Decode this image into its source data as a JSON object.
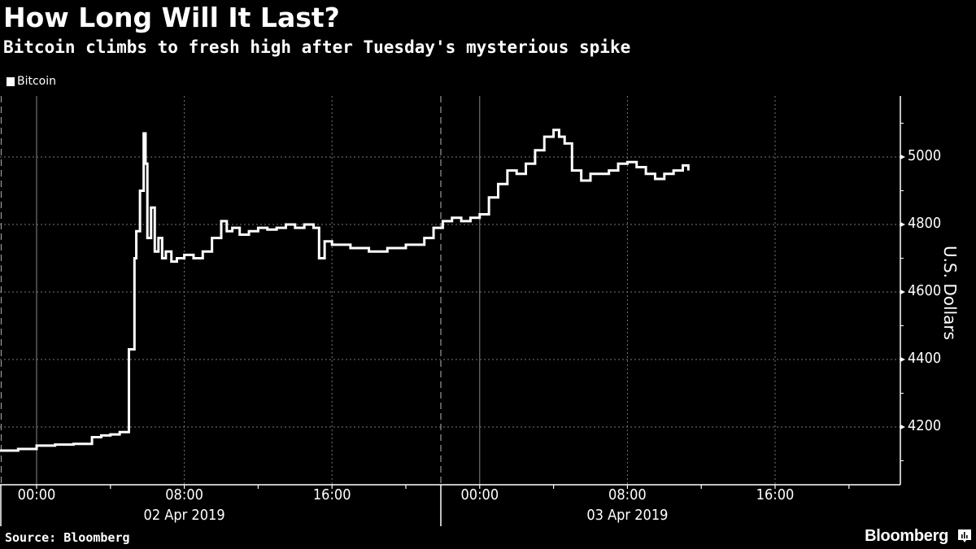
{
  "header": {
    "title": "How Long Will It Last?",
    "subtitle": "Bitcoin climbs to fresh high after Tuesday's mysterious spike"
  },
  "legend": {
    "label": "Bitcoin",
    "color": "#ffffff"
  },
  "footer": {
    "source": "Source: Bloomberg",
    "brand": "Bloomberg"
  },
  "axes": {
    "ylabel": "U.S. Dollars",
    "yticks": [
      "5000",
      "4800",
      "4600",
      "4400",
      "4200"
    ],
    "xticks": [
      "00:00",
      "08:00",
      "16:00",
      "00:00",
      "08:00",
      "16:00"
    ],
    "dates": [
      "02 Apr 2019",
      "03 Apr 2019"
    ]
  },
  "chart_data": {
    "type": "line",
    "title": "How Long Will It Last?",
    "subtitle": "Bitcoin climbs to fresh high after Tuesday's mysterious spike",
    "xlabel": "",
    "ylabel": "U.S. Dollars",
    "ylim": [
      4060,
      5180
    ],
    "grid": true,
    "legend_position": "top-left",
    "x_tick_labels": [
      "00:00",
      "08:00",
      "16:00",
      "00:00",
      "08:00",
      "16:00"
    ],
    "date_labels": [
      "02 Apr 2019",
      "03 Apr 2019"
    ],
    "y_tick_labels": [
      "4200",
      "4400",
      "4600",
      "4800",
      "5000"
    ],
    "series": [
      {
        "name": "Bitcoin",
        "color": "#ffffff",
        "x_hours_from_02Apr_0000": [
          -2.0,
          -1.0,
          0.0,
          1.0,
          2.0,
          3.0,
          3.5,
          4.0,
          4.5,
          5.0,
          5.3,
          5.4,
          5.6,
          5.8,
          5.9,
          6.0,
          6.2,
          6.4,
          6.6,
          6.8,
          7.0,
          7.3,
          7.6,
          8.0,
          8.5,
          9.0,
          9.5,
          10.0,
          10.3,
          10.6,
          11.0,
          11.5,
          12.0,
          12.5,
          13.0,
          13.5,
          14.0,
          14.5,
          15.0,
          15.3,
          15.6,
          16.0,
          16.5,
          17.0,
          18.0,
          19.0,
          20.0,
          21.0,
          21.5,
          22.0,
          22.5,
          23.0,
          23.5,
          24.0,
          24.5,
          25.0,
          25.5,
          26.0,
          26.5,
          27.0,
          27.5,
          28.0,
          28.3,
          28.6,
          29.0,
          29.5,
          30.0,
          30.5,
          31.0,
          31.5,
          32.0,
          32.5,
          33.0,
          33.5,
          34.0,
          34.5,
          35.0,
          35.3
        ],
        "values": [
          4130,
          4135,
          4145,
          4148,
          4150,
          4170,
          4175,
          4178,
          4185,
          4430,
          4700,
          4780,
          4900,
          5070,
          4980,
          4760,
          4850,
          4720,
          4760,
          4700,
          4720,
          4690,
          4700,
          4710,
          4700,
          4720,
          4760,
          4810,
          4780,
          4790,
          4770,
          4780,
          4790,
          4785,
          4790,
          4800,
          4790,
          4800,
          4790,
          4700,
          4750,
          4740,
          4740,
          4730,
          4720,
          4730,
          4740,
          4760,
          4790,
          4810,
          4820,
          4810,
          4820,
          4830,
          4880,
          4920,
          4960,
          4950,
          4980,
          5020,
          5060,
          5080,
          5060,
          5040,
          4960,
          4930,
          4950,
          4950,
          4960,
          4980,
          4985,
          4970,
          4950,
          4935,
          4950,
          4960,
          4975,
          4960
        ]
      }
    ]
  }
}
